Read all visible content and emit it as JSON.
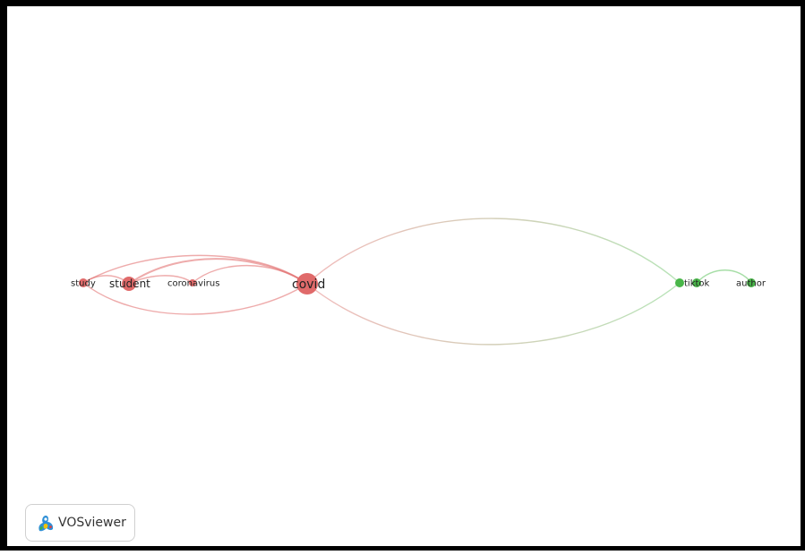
{
  "app": {
    "brand_label": "VOSviewer",
    "brand_icon": "vosviewer-logo-icon"
  },
  "colors": {
    "cluster_1": "#e06666",
    "cluster_1_node": "#e06a6a",
    "cluster_2": "#5fc25f",
    "cluster_2_node": "#49b649",
    "background": "#ffffff",
    "frame": "#000000"
  },
  "network": {
    "nodes": [
      {
        "id": "study",
        "label": "study",
        "cluster": 1
      },
      {
        "id": "student",
        "label": "student",
        "cluster": 1
      },
      {
        "id": "coronavirus",
        "label": "coronavirus",
        "cluster": 1
      },
      {
        "id": "covid",
        "label": "covid",
        "cluster": 1
      },
      {
        "id": "tiktok",
        "label": "tiktok",
        "cluster": 2
      },
      {
        "id": "author",
        "label": "author",
        "cluster": 2
      }
    ],
    "links": [
      {
        "source": "study",
        "target": "student"
      },
      {
        "source": "study",
        "target": "covid"
      },
      {
        "source": "study",
        "target": "covid"
      },
      {
        "source": "student",
        "target": "covid"
      },
      {
        "source": "student",
        "target": "coronavirus"
      },
      {
        "source": "coronavirus",
        "target": "covid"
      },
      {
        "source": "covid",
        "target": "tiktok"
      },
      {
        "source": "covid",
        "target": "tiktok"
      },
      {
        "source": "tiktok",
        "target": "author"
      }
    ]
  }
}
